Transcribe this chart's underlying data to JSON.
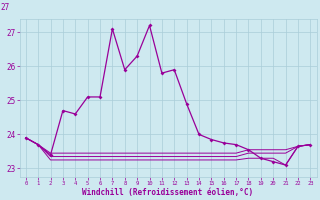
{
  "xlabel": "Windchill (Refroidissement éolien,°C)",
  "hours": [
    0,
    1,
    2,
    3,
    4,
    5,
    6,
    7,
    8,
    9,
    10,
    11,
    12,
    13,
    14,
    15,
    16,
    17,
    18,
    19,
    20,
    21,
    22,
    23
  ],
  "main_y": [
    23.9,
    23.7,
    23.4,
    24.7,
    24.6,
    25.1,
    25.1,
    27.1,
    25.9,
    26.3,
    27.2,
    25.8,
    25.9,
    24.9,
    24.0,
    23.85,
    23.75,
    23.7,
    23.55,
    23.3,
    23.2,
    23.1,
    23.65,
    23.7
  ],
  "line1_y": [
    23.9,
    23.7,
    23.45,
    23.45,
    23.45,
    23.45,
    23.45,
    23.45,
    23.45,
    23.45,
    23.45,
    23.45,
    23.45,
    23.45,
    23.45,
    23.45,
    23.45,
    23.45,
    23.55,
    23.55,
    23.55,
    23.55,
    23.65,
    23.7
  ],
  "line2_y": [
    23.9,
    23.7,
    23.25,
    23.25,
    23.25,
    23.25,
    23.25,
    23.25,
    23.25,
    23.25,
    23.25,
    23.25,
    23.25,
    23.25,
    23.25,
    23.25,
    23.25,
    23.25,
    23.3,
    23.3,
    23.3,
    23.1,
    23.65,
    23.7
  ],
  "line3_y": [
    23.9,
    23.7,
    23.35,
    23.35,
    23.35,
    23.35,
    23.35,
    23.35,
    23.35,
    23.35,
    23.35,
    23.35,
    23.35,
    23.35,
    23.35,
    23.35,
    23.35,
    23.35,
    23.45,
    23.45,
    23.45,
    23.45,
    23.65,
    23.7
  ],
  "main_color": "#990099",
  "bg_color": "#cee9f0",
  "grid_color": "#aacdd8",
  "ylim": [
    22.75,
    27.4
  ],
  "yticks": [
    23,
    24,
    25,
    26,
    27
  ],
  "ytick_labels": [
    "23",
    "24",
    "25",
    "26",
    "27"
  ]
}
